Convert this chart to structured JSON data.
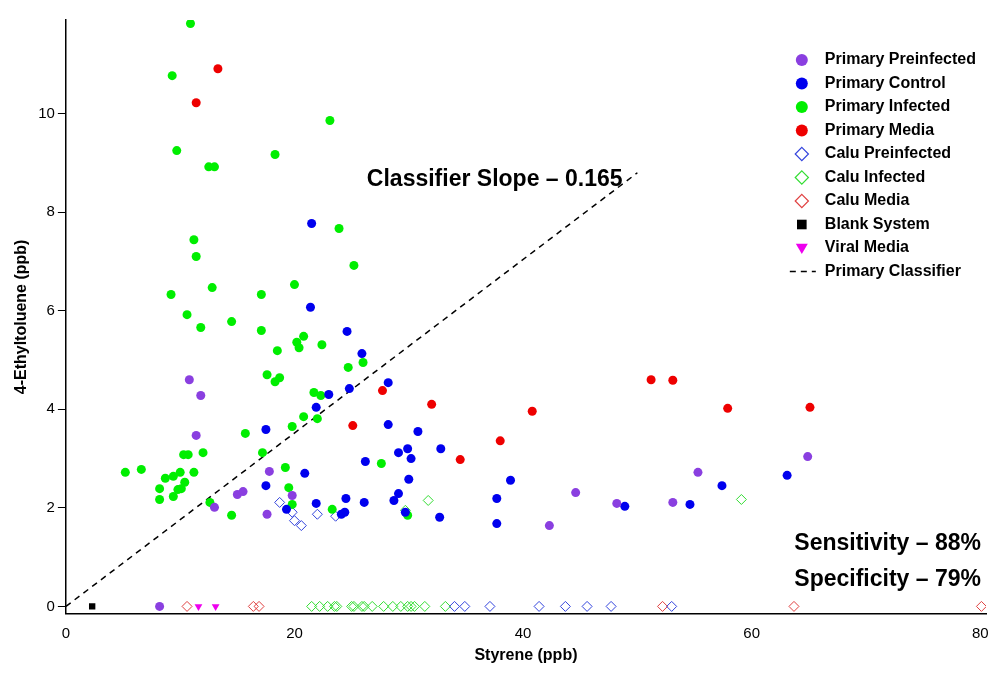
{
  "chart_data": {
    "type": "scatter",
    "xlabel": "Styrene (ppb)",
    "ylabel": "4-Ethyltoluene (ppb)",
    "xlim": [
      0,
      80.5
    ],
    "ylim": [
      -0.15,
      11.9
    ],
    "xticks": [
      0,
      20,
      40,
      60,
      80
    ],
    "yticks": [
      0,
      2,
      4,
      6,
      8,
      10
    ],
    "grid": false,
    "legend": "top right",
    "annotations": [
      "Classifier Slope – 0.165",
      "Sensitivity – 88%",
      "Specificity – 79%"
    ],
    "series": [
      {
        "name": "Primary Preinfected",
        "color": "#8a3fe0",
        "marker": "circle",
        "x": [
          10.8,
          11.8,
          11.4,
          17.8,
          19.8,
          15.0,
          15.5,
          13.0,
          17.6,
          8.2,
          44.6,
          42.3,
          48.2,
          53.1,
          55.3,
          64.9
        ],
        "values": [
          4.6,
          4.28,
          3.47,
          2.74,
          2.25,
          2.27,
          2.33,
          2.01,
          1.87,
          0,
          2.31,
          1.64,
          2.09,
          2.11,
          2.72,
          3.04
        ]
      },
      {
        "name": "Primary Control",
        "color": "#0000ee",
        "marker": "circle",
        "x": [
          21.5,
          21.4,
          24.6,
          25.9,
          24.8,
          23.0,
          21.9,
          17.5,
          20.9,
          17.5,
          21.9,
          24.5,
          26.1,
          19.3,
          24.1,
          24.4,
          26.2,
          28.2,
          28.2,
          30.8,
          32.8,
          29.1,
          29.9,
          30.2,
          38.9,
          30.0,
          29.1,
          28.7,
          32.7,
          37.7,
          37.7,
          29.7,
          48.9,
          54.6,
          57.4,
          63.1
        ],
        "values": [
          7.77,
          6.07,
          5.58,
          5.13,
          4.42,
          4.3,
          4.04,
          3.59,
          2.7,
          2.45,
          2.09,
          2.19,
          2.11,
          1.97,
          1.87,
          1.91,
          2.94,
          4.54,
          3.69,
          3.55,
          3.2,
          3.12,
          3.2,
          3.0,
          2.56,
          2.58,
          2.29,
          2.15,
          1.81,
          2.19,
          1.68,
          1.91,
          2.03,
          2.07,
          2.45,
          2.66
        ]
      },
      {
        "name": "Primary Infected",
        "color": "#00ee00",
        "marker": "circle",
        "x": [
          10.9,
          9.3,
          9.7,
          12.5,
          13.0,
          23.1,
          18.3,
          23.9,
          11.2,
          11.4,
          25.2,
          12.8,
          9.2,
          17.1,
          20.0,
          10.6,
          11.8,
          14.5,
          17.1,
          20.8,
          20.2,
          20.4,
          22.4,
          18.5,
          24.7,
          26.0,
          17.6,
          18.3,
          18.7,
          21.7,
          22.3,
          20.8,
          22.0,
          19.8,
          15.7,
          17.2,
          12.0,
          10.3,
          10.7,
          5.2,
          6.6,
          8.7,
          9.4,
          10.0,
          11.2,
          10.4,
          8.2,
          9.8,
          10.1,
          8.2,
          9.4,
          19.2,
          19.5,
          19.8,
          12.6,
          14.5,
          23.3,
          27.6,
          29.9
        ],
        "values": [
          11.83,
          10.77,
          9.25,
          8.92,
          8.92,
          9.86,
          9.17,
          7.67,
          7.44,
          7.1,
          6.92,
          6.47,
          6.33,
          6.33,
          6.53,
          5.92,
          5.66,
          5.78,
          5.6,
          5.48,
          5.36,
          5.25,
          5.31,
          5.19,
          4.85,
          4.95,
          4.7,
          4.56,
          4.64,
          4.34,
          4.28,
          3.85,
          3.81,
          3.65,
          3.51,
          3.12,
          3.12,
          3.08,
          3.08,
          2.72,
          2.78,
          2.6,
          2.64,
          2.72,
          2.72,
          2.52,
          2.39,
          2.37,
          2.39,
          2.17,
          2.23,
          2.82,
          2.41,
          2.07,
          2.11,
          1.85,
          1.97,
          2.9,
          1.85
        ]
      },
      {
        "name": "Primary Media",
        "color": "#ee0000",
        "marker": "circle",
        "x": [
          13.3,
          11.4,
          25.1,
          27.7,
          32.0,
          40.8,
          38.0,
          34.5,
          51.2,
          53.1,
          57.9,
          65.1
        ],
        "values": [
          10.91,
          10.22,
          3.67,
          4.38,
          4.1,
          3.96,
          3.36,
          2.98,
          4.6,
          4.59,
          4.02,
          4.04
        ]
      },
      {
        "name": "Calu Preinfected",
        "color": "#3344dd",
        "marker": "diamond",
        "x": [
          18.7,
          19.8,
          20.0,
          20.6,
          22.0,
          23.6,
          34.0,
          34.9,
          37.1,
          41.4,
          43.7,
          45.6,
          47.7,
          53.0
        ],
        "values": [
          2.11,
          1.91,
          1.74,
          1.64,
          1.87,
          1.83,
          0,
          0,
          0,
          0,
          0,
          0,
          0,
          0
        ]
      },
      {
        "name": "Calu Infected",
        "color": "#33dd33",
        "marker": "diamond",
        "x": [
          31.7,
          29.7,
          59.1,
          21.5,
          22.2,
          22.9,
          23.5,
          23.7,
          25.0,
          25.2,
          25.9,
          26.1,
          26.8,
          27.8,
          28.6,
          29.3,
          29.9,
          30.2,
          30.5,
          31.4,
          33.2
        ],
        "values": [
          2.15,
          1.95,
          2.17,
          0,
          0,
          0,
          0,
          0,
          0,
          0,
          0,
          0,
          0,
          0,
          0,
          0,
          0,
          0,
          0,
          0,
          0
        ]
      },
      {
        "name": "Calu Media",
        "color": "#e04040",
        "marker": "diamond",
        "x": [
          10.6,
          16.4,
          16.9,
          52.2,
          63.7,
          80.1
        ],
        "values": [
          0,
          0,
          0,
          0,
          0,
          0
        ]
      },
      {
        "name": "Blank System",
        "color": "#000000",
        "marker": "square",
        "x": [
          2.3
        ],
        "values": [
          0
        ]
      },
      {
        "name": "Viral Media",
        "color": "#ee00ee",
        "marker": "triangle",
        "x": [
          11.6,
          13.1
        ],
        "values": [
          0,
          0
        ]
      },
      {
        "name": "Primary Classifier",
        "type": "line",
        "color": "#000000",
        "line_style": "dashed",
        "marker": "none",
        "x": [
          0,
          50
        ],
        "values": [
          0,
          8.8
        ]
      }
    ]
  }
}
